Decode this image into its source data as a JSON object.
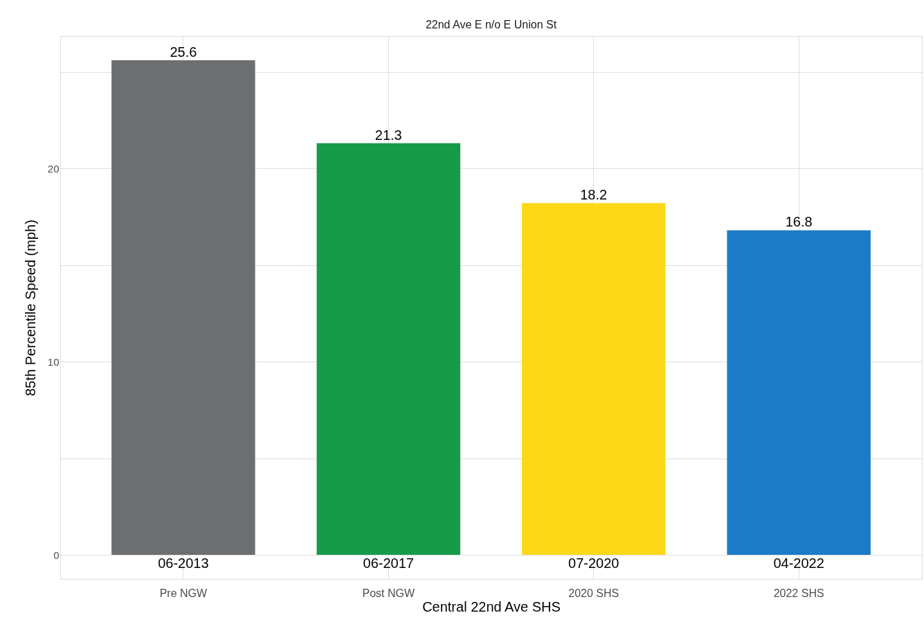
{
  "chart_data": {
    "type": "bar",
    "title": "22nd Ave E n/o E Union St",
    "xlabel": "Central 22nd Ave SHS",
    "ylabel": "85th Percentile Speed (mph)",
    "categories": [
      "Pre NGW",
      "Post NGW",
      "2020 SHS",
      "2022 SHS"
    ],
    "values": [
      25.6,
      21.3,
      18.2,
      16.8
    ],
    "colors": [
      "#6d6e70",
      "#169b4b",
      "#fdd817",
      "#1a7cc6"
    ],
    "data_labels": true,
    "annotations": [
      {
        "text": "06-2013",
        "x": "Pre NGW",
        "y": 0
      },
      {
        "text": "06-2017",
        "x": "Post NGW",
        "y": 0
      },
      {
        "text": "07-2020",
        "x": "2020 SHS",
        "y": 0
      },
      {
        "text": "04-2022",
        "x": "2022 SHS",
        "y": 0
      }
    ],
    "ylim": [
      -1.25,
      26.85
    ],
    "yticks": [
      0,
      {
        "value": 5,
        "label": null
      },
      10,
      {
        "value": 15,
        "label": null
      },
      20,
      {
        "value": 25,
        "label": null
      }
    ],
    "grid": true
  }
}
